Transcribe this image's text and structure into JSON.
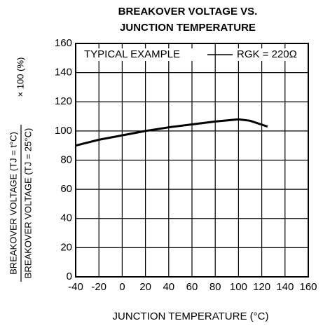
{
  "chart_data": {
    "type": "line",
    "title": [
      "BREAKOVER VOLTAGE VS.",
      "JUNCTION TEMPERATURE"
    ],
    "x_label": "JUNCTION TEMPERATURE  (°C)",
    "y_label": {
      "numerator": "BREAKOVER VOLTAGE (TJ = t°C)",
      "denominator": "BREAKOVER VOLTAGE (TJ = 25°C)",
      "factor": "× 100 (%)"
    },
    "annotations": [
      "TYPICAL EXAMPLE",
      "RGK = 220Ω"
    ],
    "x": [
      -40,
      -20,
      0,
      20,
      40,
      60,
      80,
      100,
      110,
      125
    ],
    "series": [
      {
        "name": "RGK = 220Ω",
        "color": "#000000",
        "values": [
          90,
          94,
          97,
          100,
          102.5,
          104.5,
          106.5,
          108,
          107,
          103
        ]
      }
    ],
    "xlim": [
      -40,
      160
    ],
    "xticks": [
      -40,
      -20,
      0,
      20,
      40,
      60,
      80,
      100,
      120,
      140,
      160
    ],
    "ylim": [
      0,
      160
    ],
    "yticks": [
      0,
      20,
      40,
      60,
      80,
      100,
      120,
      140,
      160
    ],
    "grid": true
  }
}
